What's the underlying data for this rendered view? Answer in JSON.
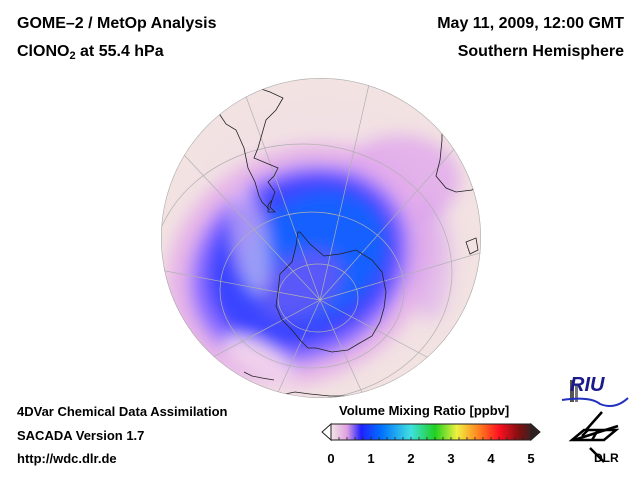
{
  "header": {
    "title": "GOME–2 / MetOp Analysis",
    "species": "ClONO",
    "species_sub": "2",
    "level": " at 55.4 hPa",
    "date": "May 11, 2009, 12:00 GMT",
    "region": "Southern Hemisphere"
  },
  "footer": {
    "line1": "4DVar Chemical Data Assimilation",
    "line2": "SACADA Version 1.7",
    "line3": "http://wdc.dlr.de"
  },
  "colorbar": {
    "label": "Volume Mixing Ratio [ppbv]",
    "ticks": [
      "0",
      "1",
      "2",
      "3",
      "4",
      "5"
    ],
    "min": 0,
    "max": 5,
    "colors": [
      "#f3e6e6",
      "#e6a6e6",
      "#0000ff",
      "#0080ff",
      "#40e0e0",
      "#00e000",
      "#ffff40",
      "#ff8000",
      "#ff0000",
      "#600000",
      "#402020"
    ]
  },
  "logos": {
    "riu": "RIU",
    "dlr": "DLR"
  }
}
